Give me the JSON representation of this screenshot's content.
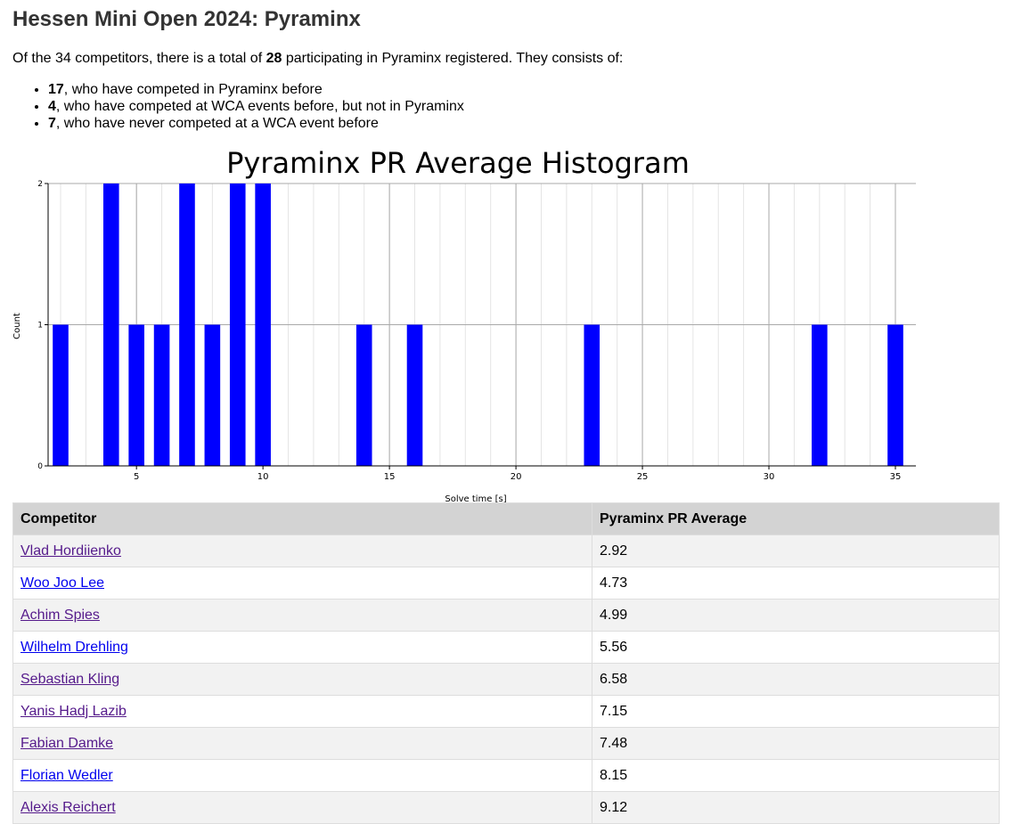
{
  "page": {
    "title": "Hessen Mini Open 2024: Pyraminx",
    "summary": {
      "prefix": "Of the 34 competitors, there is a total of ",
      "count": "28",
      "suffix": " participating in Pyraminx registered. They consists of:"
    },
    "breakdown": [
      {
        "count": "17",
        "text": ", who have competed in Pyraminx before"
      },
      {
        "count": "4",
        "text": ", who have competed at WCA events before, but not in Pyraminx"
      },
      {
        "count": "7",
        "text": ", who have never competed at a WCA event before"
      }
    ]
  },
  "colors": {
    "bar": "#0000ff",
    "link_visited": "#551a8b",
    "link_unvisited": "#0000ee",
    "header_bg": "#d3d3d3"
  },
  "chart_data": {
    "type": "bar",
    "title": "Pyraminx PR Average Histogram",
    "xlabel": "Solve time [s]",
    "ylabel": "Count",
    "x": [
      2,
      4,
      5,
      6,
      7,
      8,
      9,
      10,
      14,
      16,
      23,
      32,
      35
    ],
    "values": [
      1,
      2,
      1,
      1,
      2,
      1,
      2,
      2,
      1,
      1,
      1,
      1,
      1
    ],
    "xlim": [
      2,
      35
    ],
    "ylim": [
      0,
      2
    ],
    "x_ticks": [
      5,
      10,
      15,
      20,
      25,
      30,
      35
    ],
    "y_ticks": [
      0,
      1,
      2
    ],
    "grid": true
  },
  "table": {
    "headers": [
      "Competitor",
      "Pyraminx PR Average"
    ],
    "rows": [
      {
        "name": "Vlad Hordiienko",
        "value": "2.92",
        "visited": true
      },
      {
        "name": "Woo Joo Lee",
        "value": "4.73",
        "visited": false
      },
      {
        "name": "Achim Spies",
        "value": "4.99",
        "visited": true
      },
      {
        "name": "Wilhelm Drehling",
        "value": "5.56",
        "visited": false
      },
      {
        "name": "Sebastian Kling",
        "value": "6.58",
        "visited": true
      },
      {
        "name": "Yanis Hadj Lazib",
        "value": "7.15",
        "visited": true
      },
      {
        "name": "Fabian Damke",
        "value": "7.48",
        "visited": true
      },
      {
        "name": "Florian Wedler",
        "value": "8.15",
        "visited": false
      },
      {
        "name": "Alexis Reichert",
        "value": "9.12",
        "visited": true
      }
    ]
  }
}
